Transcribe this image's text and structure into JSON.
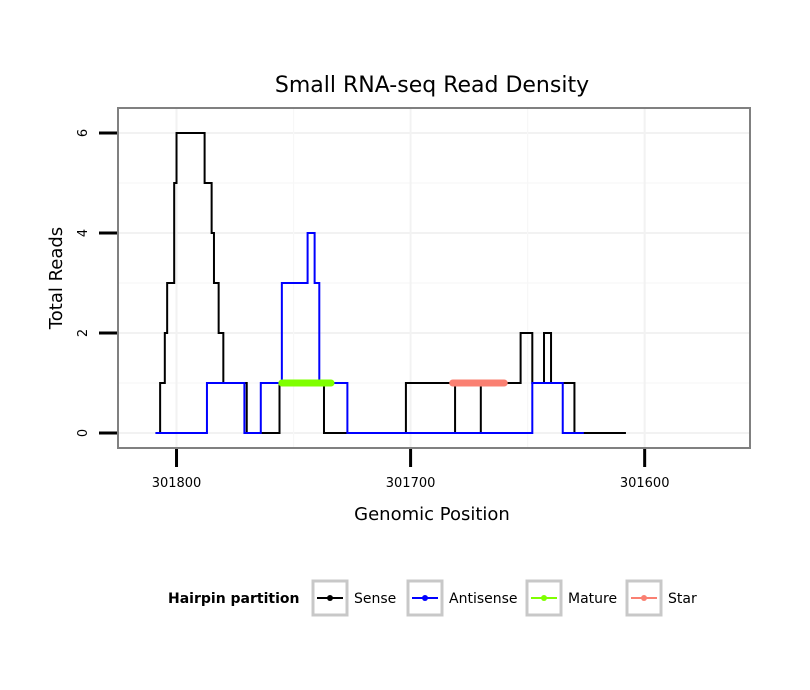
{
  "chart_data": {
    "type": "line",
    "title": "Small RNA-seq Read Density",
    "xlabel": "Genomic Position",
    "ylabel": "Total Reads",
    "xlim": [
      301825,
      301555
    ],
    "ylim": [
      -0.3,
      6.5
    ],
    "x_reversed": true,
    "x_ticks": [
      301800,
      301700,
      301600
    ],
    "x_tick_labels": [
      "301800",
      "301700",
      "301600"
    ],
    "y_ticks": [
      0,
      2,
      4,
      6
    ],
    "y_tick_labels": [
      "0",
      "2",
      "4",
      "6"
    ],
    "grid": true,
    "legend": {
      "title": "Hairpin partition",
      "position": "bottom",
      "entries": [
        {
          "label": "Sense",
          "color": "#000000"
        },
        {
          "label": "Antisense",
          "color": "#0000ff"
        },
        {
          "label": "Mature",
          "color": "#7fff00"
        },
        {
          "label": "Star",
          "color": "#fa8072"
        }
      ]
    },
    "series": [
      {
        "name": "Sense",
        "color": "#000000",
        "style": "step",
        "points": [
          [
            301809,
            0
          ],
          [
            301807,
            0
          ],
          [
            301807,
            1
          ],
          [
            301805,
            1
          ],
          [
            301805,
            2
          ],
          [
            301804,
            2
          ],
          [
            301804,
            3
          ],
          [
            301801,
            3
          ],
          [
            301801,
            5
          ],
          [
            301800,
            5
          ],
          [
            301800,
            6
          ],
          [
            301788,
            6
          ],
          [
            301788,
            5
          ],
          [
            301785,
            5
          ],
          [
            301785,
            4
          ],
          [
            301784,
            4
          ],
          [
            301784,
            3
          ],
          [
            301782,
            3
          ],
          [
            301782,
            2
          ],
          [
            301780,
            2
          ],
          [
            301780,
            1
          ],
          [
            301770,
            1
          ],
          [
            301770,
            0
          ],
          [
            301756,
            0
          ],
          [
            301756,
            1
          ],
          [
            301737,
            1
          ],
          [
            301737,
            0
          ],
          [
            301702,
            0
          ],
          [
            301702,
            1
          ],
          [
            301681,
            1
          ],
          [
            301681,
            0
          ],
          [
            301670,
            0
          ],
          [
            301670,
            1
          ],
          [
            301653,
            1
          ],
          [
            301653,
            2
          ],
          [
            301648,
            2
          ],
          [
            301648,
            1
          ],
          [
            301643,
            1
          ],
          [
            301643,
            2
          ],
          [
            301640,
            2
          ],
          [
            301640,
            1
          ],
          [
            301630,
            1
          ],
          [
            301630,
            0
          ],
          [
            301608,
            0
          ]
        ]
      },
      {
        "name": "Antisense",
        "color": "#0000ff",
        "style": "step",
        "points": [
          [
            301809,
            0
          ],
          [
            301787,
            0
          ],
          [
            301787,
            1
          ],
          [
            301771,
            1
          ],
          [
            301771,
            0
          ],
          [
            301764,
            0
          ],
          [
            301764,
            1
          ],
          [
            301755,
            1
          ],
          [
            301755,
            3
          ],
          [
            301744,
            3
          ],
          [
            301744,
            4
          ],
          [
            301741,
            4
          ],
          [
            301741,
            3
          ],
          [
            301739,
            3
          ],
          [
            301739,
            1
          ],
          [
            301727,
            1
          ],
          [
            301727,
            0
          ],
          [
            301648,
            0
          ],
          [
            301648,
            1
          ],
          [
            301635,
            1
          ],
          [
            301635,
            0
          ],
          [
            301626,
            0
          ]
        ]
      },
      {
        "name": "Mature",
        "color": "#7fff00",
        "style": "segment",
        "width": 7,
        "points": [
          [
            301755,
            1
          ],
          [
            301734,
            1
          ]
        ]
      },
      {
        "name": "Star",
        "color": "#fa8072",
        "style": "segment",
        "width": 7,
        "points": [
          [
            301682,
            1
          ],
          [
            301660,
            1
          ]
        ]
      }
    ]
  }
}
